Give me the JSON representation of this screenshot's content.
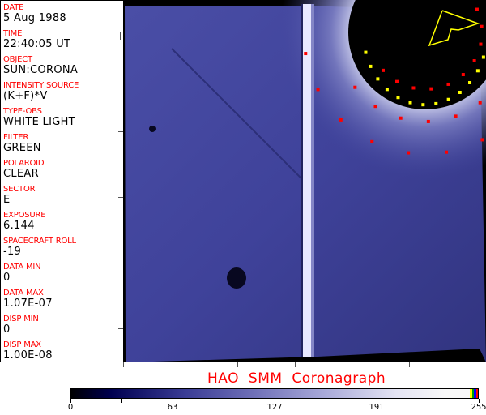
{
  "info_panel": [
    {
      "label": "DATE",
      "value": "5 Aug 1988"
    },
    {
      "label": "TIME",
      "value": "22:40:05 UT"
    },
    {
      "label": "OBJECT",
      "value": "SUN:CORONA"
    },
    {
      "label": "INTENSITY SOURCE",
      "value": "(K+F)*V"
    },
    {
      "label": "TYPE-OBS",
      "value": "WHITE LIGHT"
    },
    {
      "label": "FILTER",
      "value": "GREEN"
    },
    {
      "label": "POLAROID",
      "value": "CLEAR"
    },
    {
      "label": "SECTOR",
      "value": "E"
    },
    {
      "label": "EXPOSURE",
      "value": "6.144"
    },
    {
      "label": "SPACECRAFT ROLL",
      "value": "-19"
    },
    {
      "label": "DATA MIN",
      "value": "0"
    },
    {
      "label": "DATA MAX",
      "value": "1.07E-07"
    },
    {
      "label": "DISP MIN",
      "value": "0"
    },
    {
      "label": "DISP MAX",
      "value": "1.00E-08"
    }
  ],
  "title": "HAO  SMM Coronagraph",
  "colorbar": {
    "labels": [
      "0",
      "63",
      "127",
      "191",
      "255"
    ],
    "colors": {
      "low": "#000000",
      "mid": "#6f70b8",
      "high": "#f8f8f8"
    },
    "end_colors": [
      "#ffff00",
      "#00a000",
      "#0000ff",
      "#ff0000"
    ]
  },
  "overlay_colors": {
    "grid_marker": "#ff0000",
    "limb_marker": "#ffff00"
  }
}
